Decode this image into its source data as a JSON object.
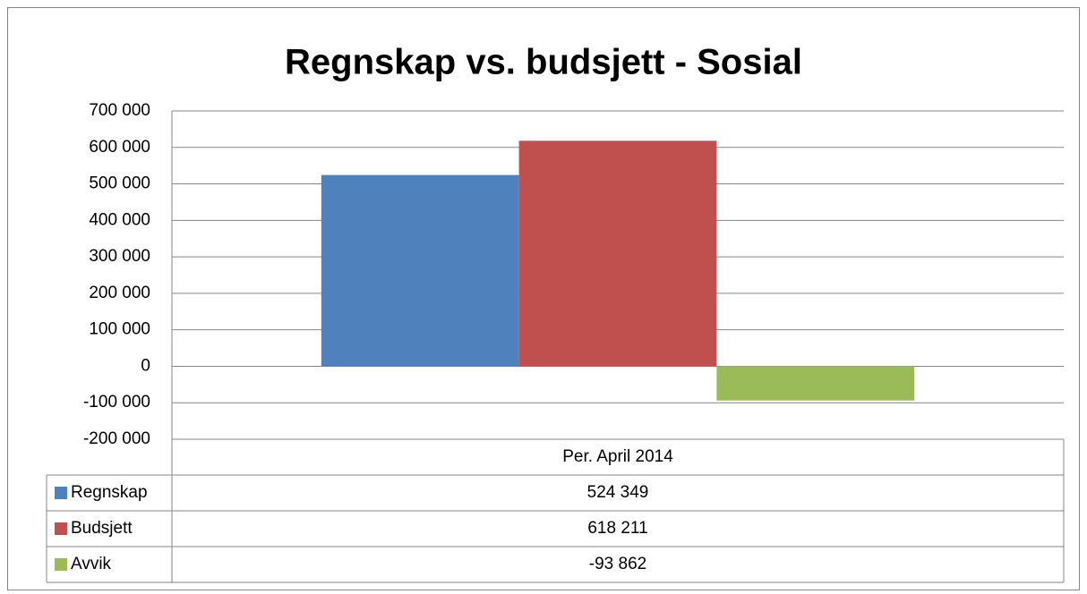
{
  "chart_data": {
    "type": "bar",
    "title": "Regnskap vs. budsjett - Sosial",
    "categories": [
      "Per. April 2014"
    ],
    "series": [
      {
        "name": "Regnskap",
        "color": "#4f81bd",
        "values": [
          524349
        ],
        "value_labels": [
          "524 349"
        ]
      },
      {
        "name": "Budsjett",
        "color": "#c0504d",
        "values": [
          618211
        ],
        "value_labels": [
          "618 211"
        ]
      },
      {
        "name": "Avvik",
        "color": "#9bbb59",
        "values": [
          -93862
        ],
        "value_labels": [
          "-93 862"
        ]
      }
    ],
    "ylim": [
      -200000,
      700000
    ],
    "yticks": [
      {
        "value": -200000,
        "label": "-200 000"
      },
      {
        "value": -100000,
        "label": "-100 000"
      },
      0,
      {
        "value": 100000,
        "label": "100 000"
      },
      {
        "value": 200000,
        "label": "200 000"
      },
      {
        "value": 300000,
        "label": "300 000"
      },
      {
        "value": 400000,
        "label": "400 000"
      },
      {
        "value": 500000,
        "label": "500 000"
      },
      {
        "value": 600000,
        "label": "600 000"
      },
      {
        "value": 700000,
        "label": "700 000"
      }
    ],
    "grid": true,
    "legend": "data-table"
  }
}
